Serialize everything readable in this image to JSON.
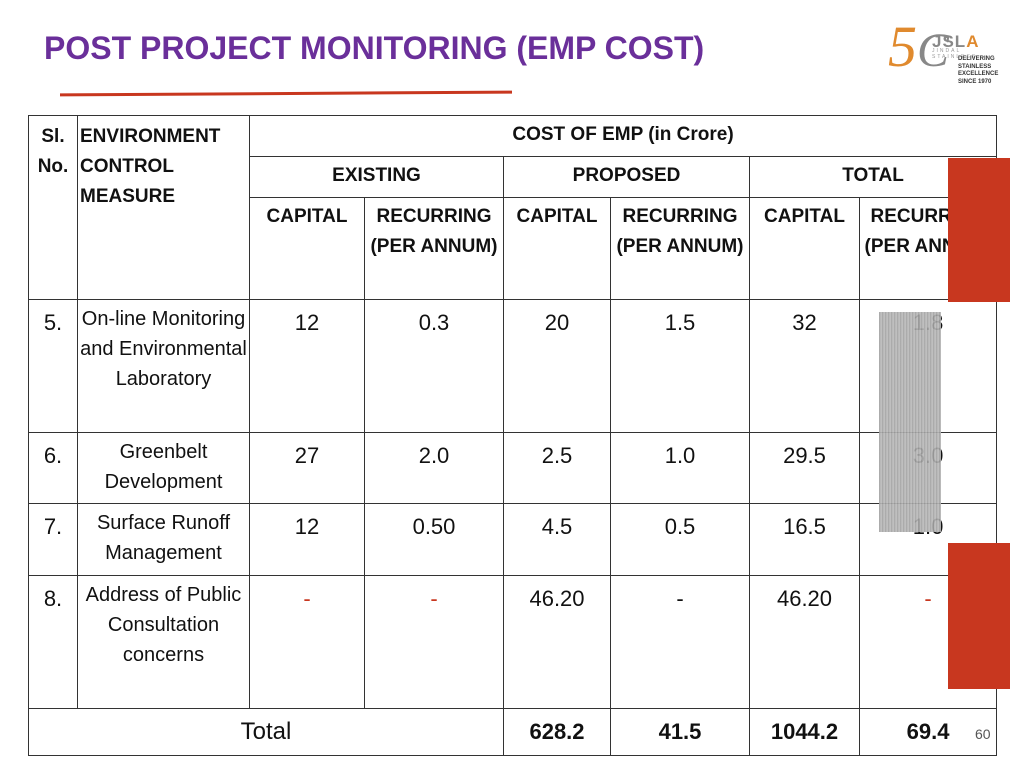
{
  "title": "POST PROJECT MONITORING (EMP COST)",
  "logo": {
    "fifty": "5",
    "name_j": "JSL",
    "name_a": "A",
    "subtitle": "JINDAL STAINLESS",
    "tagline": "DELIVERING STAINLESS EXCELLENCE SINCE 1970"
  },
  "table": {
    "headers": {
      "sl_no": "Sl. No.",
      "measure": "ENVIRONMENT CONTROL MEASURE",
      "cost_title": "COST OF EMP (in Crore)",
      "existing": "EXISTING",
      "proposed": "PROPOSED",
      "total": "TOTAL",
      "capital": "CAPITAL",
      "recurring": "RECURRING (PER ANNUM)"
    },
    "rows": [
      {
        "sl": "5.",
        "measure": "On-line Monitoring and Environmental Laboratory",
        "ex_cap": "12",
        "ex_rec": "0.3",
        "pr_cap": "20",
        "pr_rec": "1.5",
        "to_cap": "32",
        "to_rec": "1.8"
      },
      {
        "sl": "6.",
        "measure": "Greenbelt Development",
        "ex_cap": "27",
        "ex_rec": "2.0",
        "pr_cap": "2.5",
        "pr_rec": "1.0",
        "to_cap": "29.5",
        "to_rec": "3.0"
      },
      {
        "sl": "7.",
        "measure": "Surface Runoff Management",
        "ex_cap": "12",
        "ex_rec": "0.50",
        "pr_cap": "4.5",
        "pr_rec": "0.5",
        "to_cap": "16.5",
        "to_rec": "1.0"
      },
      {
        "sl": "8.",
        "measure": "Address of Public Consultation concerns",
        "ex_cap": "-",
        "ex_rec": "-",
        "pr_cap": "46.20",
        "pr_rec": "-",
        "to_cap": "46.20",
        "to_rec": "-"
      }
    ],
    "total_row": {
      "label": "Total",
      "pr_cap": "628.2",
      "pr_rec": "41.5",
      "to_cap": "1044.2",
      "to_rec": "69.4"
    }
  },
  "page_number": "60",
  "colors": {
    "title": "#6a2f9a",
    "accent_red": "#c8371f",
    "logo_orange": "#e08a2e"
  }
}
